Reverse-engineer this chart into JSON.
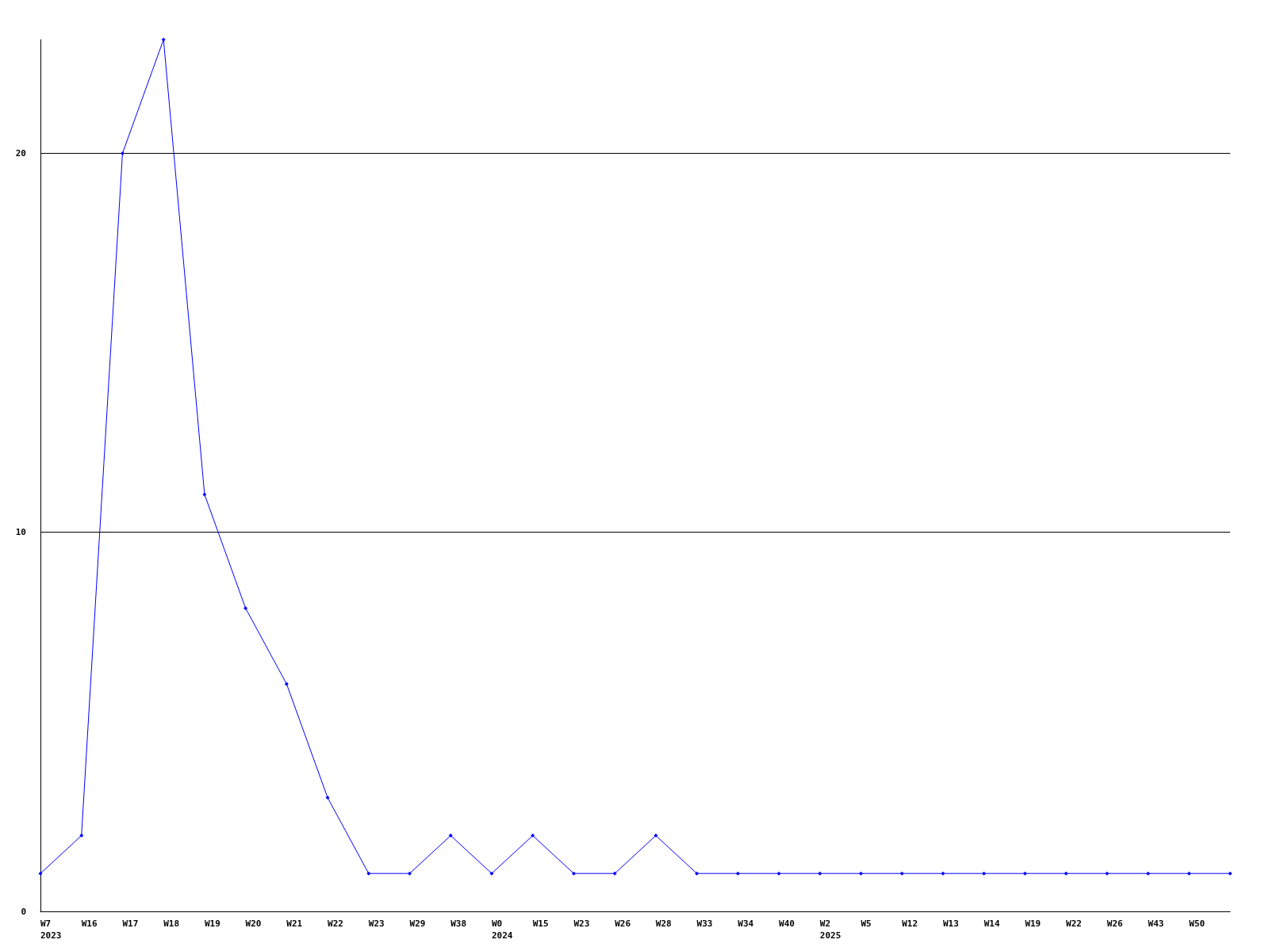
{
  "chart_data": {
    "type": "line",
    "categories": [
      "W7\n2023",
      "W16",
      "W17",
      "W18",
      "W19",
      "W20",
      "W21",
      "W22",
      "W23",
      "W29",
      "W38",
      "W0\n2024",
      "W15",
      "W23",
      "W26",
      "W28",
      "W33",
      "W34",
      "W40",
      "W2\n2025",
      "W5",
      "W12",
      "W13",
      "W14",
      "W19",
      "W22",
      "W26",
      "W43",
      "W50",
      null
    ],
    "values": [
      1,
      2,
      20,
      23,
      11,
      8,
      6,
      3,
      1,
      1,
      2,
      1,
      2,
      1,
      1,
      2,
      1,
      1,
      1,
      1,
      1,
      1,
      1,
      1,
      1,
      1,
      1,
      1,
      1,
      1
    ],
    "color": "#0000ff",
    "ylim": [
      0,
      23
    ],
    "yticks": [
      0,
      10,
      20
    ],
    "grid": "y",
    "marker": "diamond"
  }
}
